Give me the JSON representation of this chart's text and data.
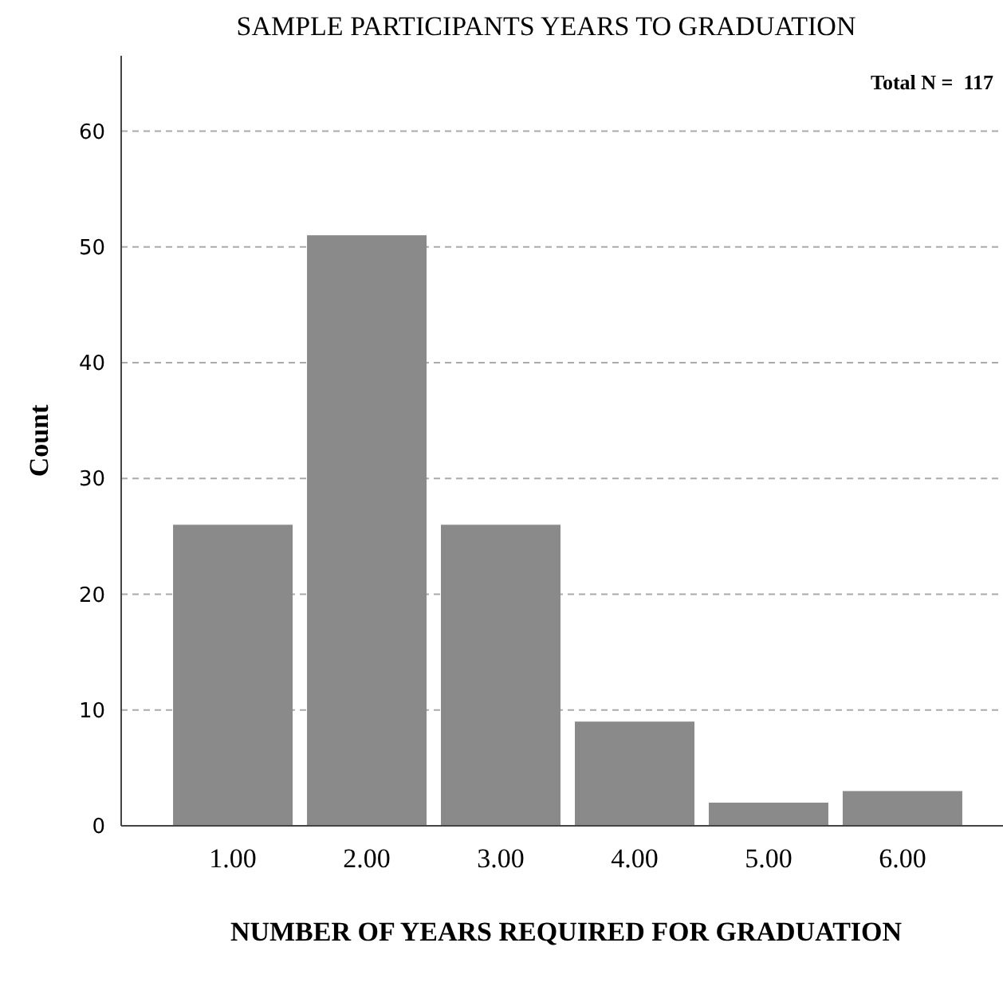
{
  "chart_data": {
    "type": "bar",
    "title": "SAMPLE PARTICIPANTS YEARS TO GRADUATION",
    "xlabel": "NUMBER OF YEARS REQUIRED FOR GRADUATION",
    "ylabel": "Count",
    "categories": [
      "1.00",
      "2.00",
      "3.00",
      "4.00",
      "5.00",
      "6.00"
    ],
    "values": [
      26,
      51,
      26,
      9,
      2,
      3
    ],
    "color": "#8a8a8a",
    "ylim": [
      0,
      66.5
    ],
    "yticks": [
      0,
      10,
      20,
      30,
      40,
      50,
      60
    ],
    "grid": "y",
    "annotations": [
      "Total N =  117"
    ]
  }
}
